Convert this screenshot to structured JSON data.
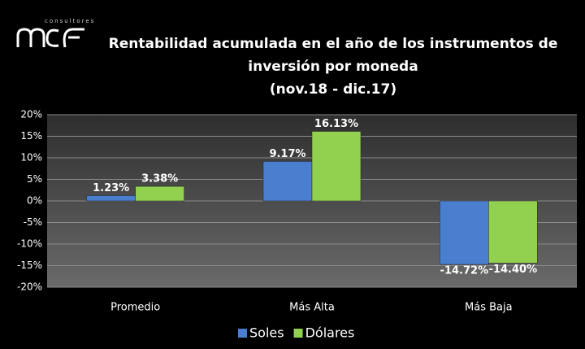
{
  "chart_data": {
    "type": "bar",
    "title": "Rentabilidad acumulada en el año de los instrumentos de inversión por moneda",
    "subtitle": "(nov.18 - dic.17)",
    "logo_tagline": "consultores",
    "categories": [
      "Promedio",
      "Más Alta",
      "Más Baja"
    ],
    "series": [
      {
        "name": "Soles",
        "color": "#4a7fd0",
        "values": [
          1.23,
          9.17,
          -14.72
        ],
        "value_labels": [
          "1.23%",
          "9.17%",
          "-14.72%"
        ]
      },
      {
        "name": "Dólares",
        "color": "#92d050",
        "values": [
          3.38,
          16.13,
          -14.4
        ],
        "value_labels": [
          "3.38%",
          "16.13%",
          "-14.40%"
        ]
      }
    ],
    "ylim": [
      -20,
      20
    ],
    "yticks": [
      {
        "value": -20,
        "label": "-20%"
      },
      {
        "value": -15,
        "label": "-15%"
      },
      {
        "value": -10,
        "label": "-10%"
      },
      {
        "value": -5,
        "label": "-5%"
      },
      {
        "value": 0,
        "label": "0%"
      },
      {
        "value": 5,
        "label": "5%"
      },
      {
        "value": 10,
        "label": "10%"
      },
      {
        "value": 15,
        "label": "15%"
      },
      {
        "value": 20,
        "label": "20%"
      }
    ],
    "grid": true,
    "legend": "bottom"
  }
}
